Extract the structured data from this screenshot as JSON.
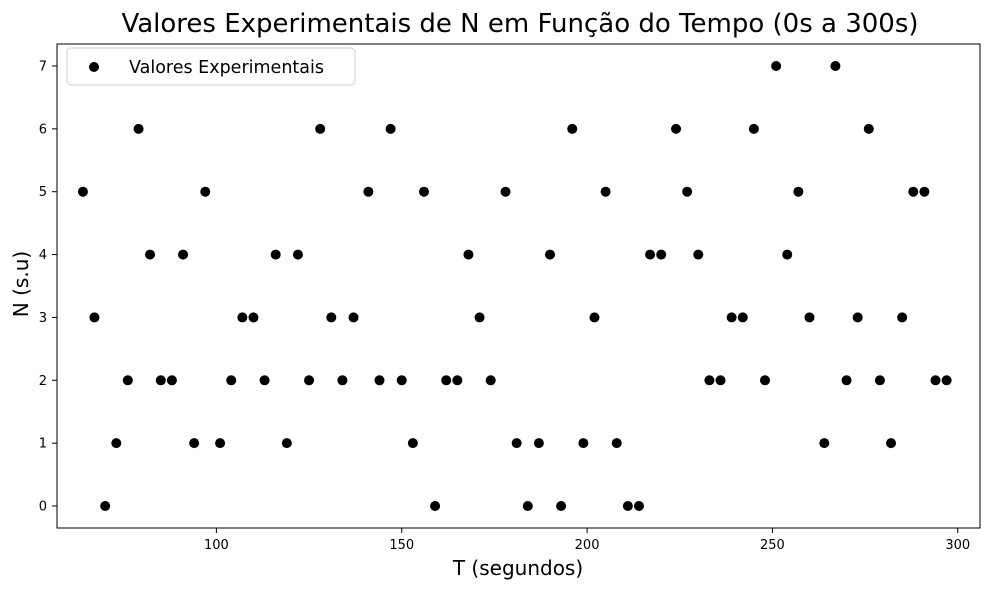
{
  "chart_data": {
    "type": "scatter",
    "title": "Valores Experimentais de N em Função do Tempo (0s a 300s)",
    "xlabel": "T (segundos)",
    "ylabel": "N (s.u)",
    "xlim": [
      57,
      306
    ],
    "ylim": [
      -0.35,
      7.35
    ],
    "xticks": [
      100,
      150,
      200,
      250,
      300
    ],
    "yticks": [
      0,
      1,
      2,
      3,
      4,
      5,
      6,
      7
    ],
    "grid": false,
    "legend_position": "upper-left",
    "series": [
      {
        "name": "Valores Experimentais",
        "color": "#000000",
        "marker": "circle",
        "x": [
          64.0,
          67.1,
          70.0,
          73.0,
          76.1,
          79.0,
          82.1,
          85.0,
          88.0,
          91.0,
          94.0,
          97.0,
          101.0,
          104.0,
          107.0,
          110.0,
          113.0,
          116.0,
          119.0,
          122.0,
          125.0,
          128.0,
          131.0,
          134.0,
          137.0,
          141.0,
          144.0,
          147.0,
          150.0,
          153.0,
          156.0,
          159.0,
          162.0,
          165.0,
          168.0,
          171.0,
          174.0,
          178.0,
          181.0,
          184.0,
          187.0,
          190.0,
          193.0,
          196.0,
          199.0,
          202.0,
          205.0,
          208.0,
          211.0,
          214.0,
          217.0,
          220.0,
          224.0,
          227.0,
          230.0,
          233.0,
          236.0,
          239.0,
          242.0,
          245.0,
          248.0,
          251.0,
          254.0,
          257.0,
          260.0,
          264.0,
          267.0,
          270.0,
          273.0,
          276.0,
          279.0,
          282.0,
          285.0,
          288.0,
          291.0,
          294.0,
          297.0
        ],
        "y": [
          5,
          3,
          0,
          1,
          2,
          6,
          4,
          2,
          2,
          4,
          1,
          5,
          1,
          2,
          3,
          3,
          2,
          4,
          1,
          4,
          2,
          6,
          3,
          2,
          3,
          5,
          2,
          6,
          2,
          1,
          5,
          0,
          2,
          2,
          4,
          3,
          2,
          5,
          1,
          0,
          1,
          4,
          0,
          6,
          1,
          3,
          5,
          1,
          0,
          0,
          4,
          4,
          6,
          5,
          4,
          2,
          2,
          3,
          3,
          6,
          2,
          7,
          4,
          5,
          3,
          1,
          7,
          2,
          3,
          6,
          2,
          1,
          3,
          5,
          5,
          2,
          2
        ]
      }
    ]
  }
}
